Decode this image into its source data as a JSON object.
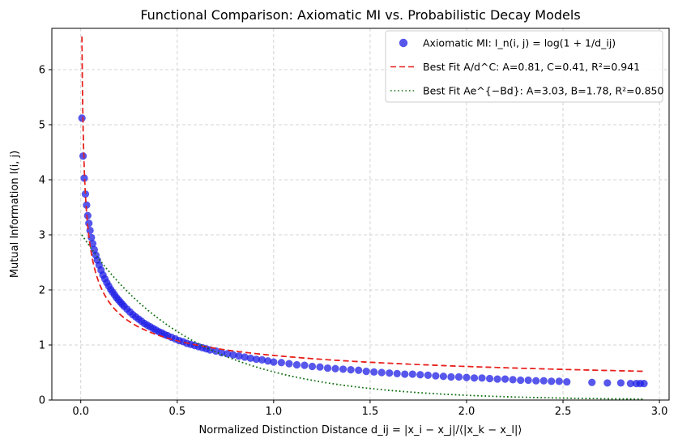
{
  "chart_data": {
    "type": "scatter",
    "title": "Functional Comparison: Axiomatic MI vs. Probabilistic Decay Models",
    "xlabel": "Normalized Distinction Distance d_ij = |x_i − x_j|/⟨|x_k − x_l|⟩",
    "ylabel": "Mutual Information I(i, j)",
    "xlim": [
      -0.15,
      3.05
    ],
    "ylim": [
      0,
      6.75
    ],
    "x_ticks": [
      "0.0",
      "0.5",
      "1.0",
      "1.5",
      "2.0",
      "2.5",
      "3.0"
    ],
    "y_ticks": [
      "0",
      "1",
      "2",
      "3",
      "4",
      "5",
      "6"
    ],
    "grid": true,
    "legend_position": "top-right",
    "series": [
      {
        "name": "Axiomatic MI: I_n(i, j) = log(1 + 1/d_ij)",
        "kind": "scatter",
        "color": "#1f1fe6",
        "x": [
          0.006,
          0.012,
          0.018,
          0.024,
          0.03,
          0.036,
          0.042,
          0.048,
          0.055,
          0.062,
          0.07,
          0.078,
          0.086,
          0.095,
          0.105,
          0.115,
          0.125,
          0.135,
          0.145,
          0.155,
          0.165,
          0.175,
          0.185,
          0.195,
          0.205,
          0.215,
          0.225,
          0.24,
          0.255,
          0.27,
          0.285,
          0.3,
          0.315,
          0.33,
          0.345,
          0.36,
          0.375,
          0.39,
          0.405,
          0.42,
          0.435,
          0.45,
          0.47,
          0.49,
          0.51,
          0.53,
          0.55,
          0.57,
          0.59,
          0.61,
          0.63,
          0.65,
          0.67,
          0.7,
          0.73,
          0.76,
          0.79,
          0.82,
          0.85,
          0.88,
          0.91,
          0.94,
          0.97,
          1.0,
          1.04,
          1.08,
          1.12,
          1.16,
          1.2,
          1.24,
          1.28,
          1.32,
          1.36,
          1.4,
          1.44,
          1.48,
          1.52,
          1.56,
          1.6,
          1.64,
          1.68,
          1.72,
          1.76,
          1.8,
          1.84,
          1.88,
          1.92,
          1.96,
          2.0,
          2.04,
          2.08,
          2.12,
          2.16,
          2.2,
          2.24,
          2.28,
          2.32,
          2.36,
          2.4,
          2.44,
          2.48,
          2.52,
          2.65,
          2.73,
          2.8,
          2.85,
          2.88,
          2.9,
          2.92
        ],
        "y": [
          5.12,
          4.43,
          4.03,
          3.74,
          3.54,
          3.35,
          3.21,
          3.08,
          2.95,
          2.84,
          2.73,
          2.63,
          2.54,
          2.45,
          2.36,
          2.27,
          2.2,
          2.13,
          2.07,
          2.01,
          1.96,
          1.91,
          1.86,
          1.82,
          1.78,
          1.74,
          1.7,
          1.65,
          1.6,
          1.55,
          1.51,
          1.47,
          1.43,
          1.39,
          1.36,
          1.33,
          1.3,
          1.27,
          1.24,
          1.22,
          1.19,
          1.17,
          1.14,
          1.11,
          1.08,
          1.06,
          1.03,
          1.01,
          0.99,
          0.97,
          0.95,
          0.93,
          0.91,
          0.89,
          0.86,
          0.84,
          0.82,
          0.8,
          0.78,
          0.76,
          0.74,
          0.73,
          0.71,
          0.69,
          0.68,
          0.66,
          0.64,
          0.63,
          0.61,
          0.6,
          0.58,
          0.57,
          0.56,
          0.55,
          0.54,
          0.52,
          0.51,
          0.5,
          0.49,
          0.48,
          0.47,
          0.47,
          0.46,
          0.45,
          0.44,
          0.43,
          0.42,
          0.42,
          0.41,
          0.4,
          0.4,
          0.39,
          0.38,
          0.38,
          0.37,
          0.36,
          0.36,
          0.35,
          0.35,
          0.34,
          0.34,
          0.33,
          0.32,
          0.31,
          0.31,
          0.3,
          0.3,
          0.3,
          0.3
        ]
      },
      {
        "name": "Best Fit A/d^C: A=0.81, C=0.41, R²=0.941",
        "kind": "line",
        "style": "dashed",
        "color": "#e8201c",
        "formula": "A*d^-C",
        "params": {
          "A": 0.81,
          "C": 0.41
        },
        "x_range": [
          0.006,
          2.92
        ]
      },
      {
        "name": "Best Fit Ae^{−Bd}: A=3.03, B=1.78, R²=0.850",
        "kind": "line",
        "style": "dotted",
        "color": "#107010",
        "formula": "A*exp(-B*d)",
        "params": {
          "A": 3.03,
          "B": 1.78
        },
        "x_range": [
          0.006,
          2.92
        ]
      }
    ]
  }
}
